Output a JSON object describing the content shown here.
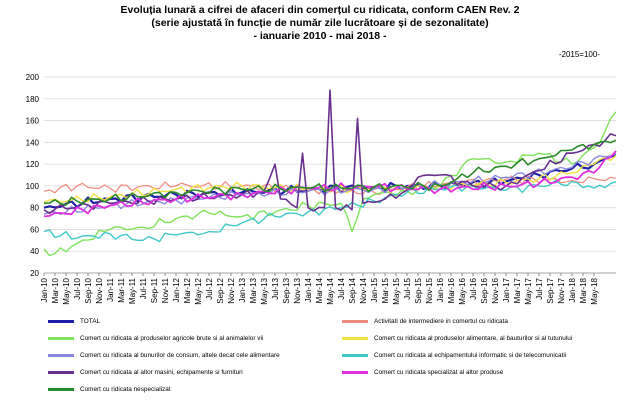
{
  "header": {
    "line1": "Evoluția lunară a cifrei de afaceri din comerțul cu ridicata,  conform CAEN Rev. 2",
    "line2": "(serie ajustată în funcție de număr zile lucrătoare și de sezonalitate)",
    "line3": "- ianuarie 2010 - mai 2018  -",
    "base_note": "-2015=100-"
  },
  "chart_data": {
    "type": "line",
    "title": "Evoluția lunară a cifrei de afaceri din comerțul cu ridicata,  conform CAEN Rev. 2",
    "subtitle": "(serie ajustată în funcție de număr zile lucrătoare și de sezonalitate) - ianuarie 2010 - mai 2018  -",
    "xlabel": "",
    "ylabel": "",
    "ylim": [
      20,
      200
    ],
    "yticks": [
      20,
      40,
      60,
      80,
      100,
      120,
      140,
      160,
      180,
      200
    ],
    "grid": true,
    "legend_position": "bottom",
    "x_tick_labels": [
      "Jan-10",
      "Mar-10",
      "May-10",
      "Jul-10",
      "Sep-10",
      "Nov-10",
      "Jan-11",
      "Mar-11",
      "May-11",
      "Jul-11",
      "Sep-11",
      "Nov-11",
      "Jan-12",
      "Mar-12",
      "May-12",
      "Jul-12",
      "Sep-12",
      "Nov-12",
      "Jan-13",
      "Mar-13",
      "May-13",
      "Jul-13",
      "Sep-13",
      "Nov-13",
      "Jan-14",
      "Mar-14",
      "May-14",
      "Jul-14",
      "Sep-14",
      "Nov-14",
      "Jan-15",
      "Mar-15",
      "May-15",
      "Jul-15",
      "Sep-15",
      "Nov-15",
      "Jan-16",
      "Mar-16",
      "May-16",
      "Jul-16",
      "Sep-16",
      "Nov-16",
      "Jan-17",
      "Mar-17",
      "May-17",
      "Jul-17",
      "Sep-17",
      "Nov-17",
      "Jan-18",
      "Mar-18",
      "May-18"
    ],
    "x_start": "2010-01",
    "series": [
      {
        "name": "TOTAL",
        "color": "#1f1fa8",
        "width": 2.2,
        "anchors": [
          [
            0,
            80
          ],
          [
            12,
            88
          ],
          [
            24,
            92
          ],
          [
            36,
            94
          ],
          [
            48,
            97
          ],
          [
            60,
            99
          ],
          [
            72,
            100
          ],
          [
            84,
            104
          ],
          [
            90,
            110
          ],
          [
            96,
            116
          ],
          [
            100,
            120
          ],
          [
            102,
            125
          ],
          [
            104,
            128
          ]
        ]
      },
      {
        "name": "Activitati de intermediere in comertul cu ridicata",
        "color": "#f08a80",
        "width": 1.2,
        "anchors": [
          [
            0,
            95
          ],
          [
            6,
            100
          ],
          [
            12,
            98
          ],
          [
            24,
            100
          ],
          [
            36,
            100
          ],
          [
            48,
            97
          ],
          [
            60,
            94
          ],
          [
            66,
            99
          ],
          [
            72,
            101
          ],
          [
            84,
            106
          ],
          [
            96,
            105
          ],
          [
            104,
            107
          ]
        ]
      },
      {
        "name": "Comert cu ridicata al produselor agricole brute si al animalelor vii",
        "color": "#7fe35a",
        "width": 1.4,
        "anchors": [
          [
            0,
            42
          ],
          [
            2,
            38
          ],
          [
            6,
            47
          ],
          [
            12,
            60
          ],
          [
            18,
            62
          ],
          [
            24,
            70
          ],
          [
            30,
            75
          ],
          [
            36,
            72
          ],
          [
            42,
            76
          ],
          [
            48,
            82
          ],
          [
            54,
            84
          ],
          [
            56,
            58
          ],
          [
            58,
            88
          ],
          [
            60,
            92
          ],
          [
            66,
            95
          ],
          [
            72,
            100
          ],
          [
            76,
            118
          ],
          [
            78,
            125
          ],
          [
            84,
            122
          ],
          [
            90,
            130
          ],
          [
            96,
            120
          ],
          [
            100,
            135
          ],
          [
            102,
            150
          ],
          [
            104,
            168
          ]
        ]
      },
      {
        "name": "Comert cu ridicata al produselor alimentare, al bauturilor si al tutunului",
        "color": "#f0e040",
        "width": 1.4,
        "anchors": [
          [
            0,
            85
          ],
          [
            12,
            90
          ],
          [
            24,
            97
          ],
          [
            36,
            100
          ],
          [
            48,
            97
          ],
          [
            60,
            97
          ],
          [
            72,
            100
          ],
          [
            84,
            103
          ],
          [
            90,
            107
          ],
          [
            96,
            112
          ],
          [
            100,
            120
          ],
          [
            104,
            128
          ]
        ]
      },
      {
        "name": "Comert cu ridicata al bunurilor de consum, altele decat cele alimentare",
        "color": "#8a8ae0",
        "width": 1.4,
        "anchors": [
          [
            0,
            74
          ],
          [
            12,
            82
          ],
          [
            24,
            87
          ],
          [
            36,
            92
          ],
          [
            48,
            95
          ],
          [
            60,
            97
          ],
          [
            72,
            101
          ],
          [
            84,
            108
          ],
          [
            96,
            117
          ],
          [
            100,
            125
          ],
          [
            104,
            130
          ]
        ]
      },
      {
        "name": "Comert cu ridicata al echipamentului informatic si de telecomunicatii",
        "color": "#40c8c8",
        "width": 1.4,
        "anchors": [
          [
            0,
            58
          ],
          [
            6,
            52
          ],
          [
            12,
            56
          ],
          [
            18,
            50
          ],
          [
            24,
            55
          ],
          [
            30,
            58
          ],
          [
            36,
            66
          ],
          [
            42,
            72
          ],
          [
            48,
            76
          ],
          [
            54,
            80
          ],
          [
            60,
            86
          ],
          [
            66,
            94
          ],
          [
            72,
            97
          ],
          [
            78,
            100
          ],
          [
            84,
            96
          ],
          [
            90,
            100
          ],
          [
            96,
            104
          ],
          [
            100,
            98
          ],
          [
            104,
            104
          ]
        ]
      },
      {
        "name": "Comert cu ridicata al altor masini, echipamente si furnituri",
        "color": "#6a3090",
        "width": 1.6,
        "anchors": [
          [
            0,
            78
          ],
          [
            12,
            84
          ],
          [
            24,
            88
          ],
          [
            36,
            92
          ],
          [
            40,
            95
          ],
          [
            42,
            120
          ],
          [
            43,
            88
          ],
          [
            46,
            80
          ],
          [
            47,
            130
          ],
          [
            48,
            80
          ],
          [
            51,
            80
          ],
          [
            52,
            188
          ],
          [
            53,
            80
          ],
          [
            56,
            78
          ],
          [
            57,
            162
          ],
          [
            58,
            84
          ],
          [
            62,
            88
          ],
          [
            66,
            96
          ],
          [
            68,
            108
          ],
          [
            72,
            110
          ],
          [
            78,
            100
          ],
          [
            84,
            100
          ],
          [
            90,
            114
          ],
          [
            96,
            130
          ],
          [
            100,
            138
          ],
          [
            104,
            146
          ]
        ]
      },
      {
        "name": "Comert cu ridicata specializat al altor produse",
        "color": "#e030e0",
        "width": 1.8,
        "anchors": [
          [
            0,
            72
          ],
          [
            12,
            82
          ],
          [
            24,
            88
          ],
          [
            36,
            92
          ],
          [
            48,
            98
          ],
          [
            60,
            99
          ],
          [
            72,
            97
          ],
          [
            84,
            100
          ],
          [
            90,
            102
          ],
          [
            96,
            108
          ],
          [
            100,
            112
          ],
          [
            104,
            132
          ]
        ]
      },
      {
        "name": "Comert cu ridicata nespecializat",
        "color": "#2a8a2a",
        "width": 1.6,
        "anchors": [
          [
            0,
            84
          ],
          [
            12,
            88
          ],
          [
            24,
            94
          ],
          [
            36,
            97
          ],
          [
            48,
            98
          ],
          [
            60,
            99
          ],
          [
            72,
            100
          ],
          [
            78,
            112
          ],
          [
            84,
            118
          ],
          [
            90,
            125
          ],
          [
            96,
            133
          ],
          [
            100,
            138
          ],
          [
            104,
            142
          ]
        ]
      }
    ]
  }
}
